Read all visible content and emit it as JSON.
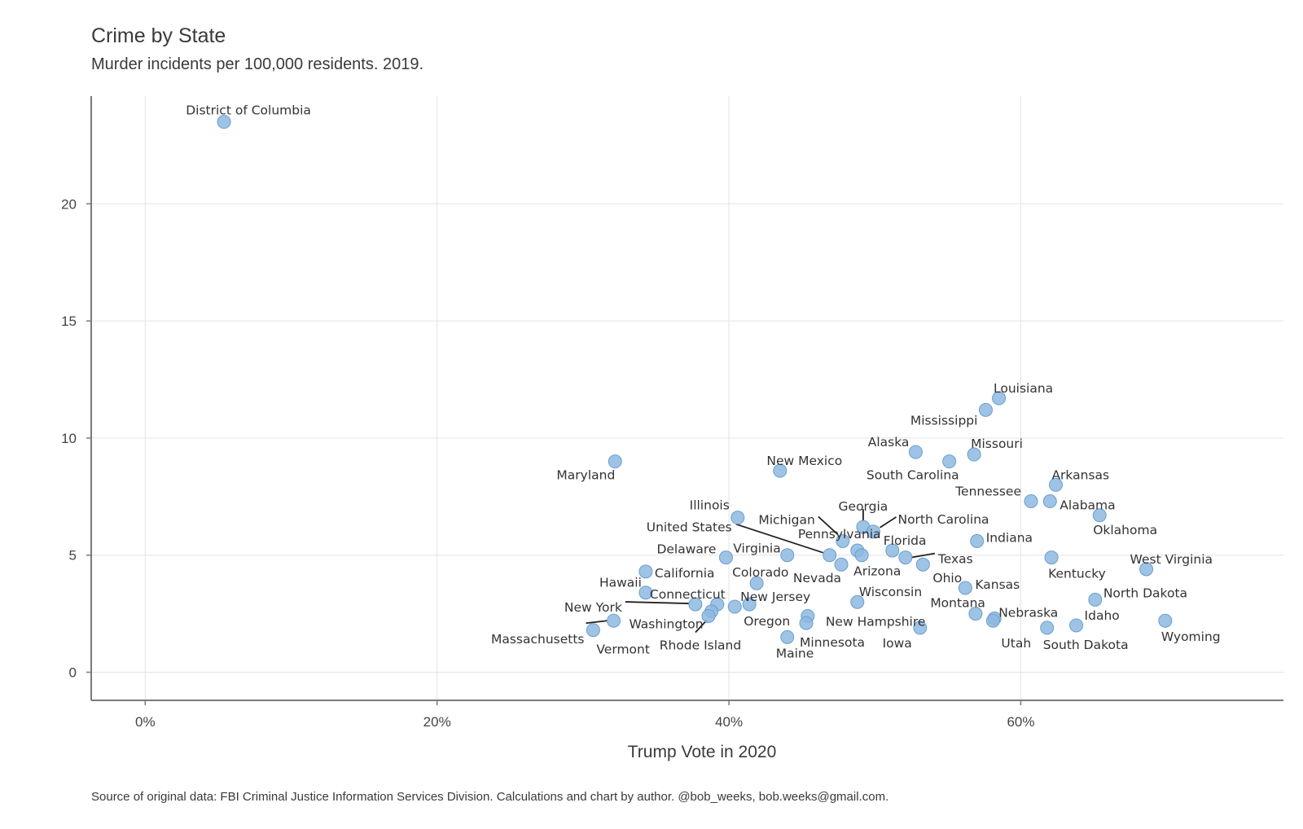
{
  "chart_data": {
    "type": "scatter",
    "title": "Crime by State",
    "subtitle": "Murder incidents per 100,000 residents. 2019.",
    "xlabel": "Trump Vote in 2020",
    "ylabel": "",
    "caption": "Source of original data: FBI Criminal Justice Information Services Division. Calculations and chart by author. @bob_weeks, bob.weeks@gmail.com.",
    "xlim": [
      -3.7,
      78
    ],
    "ylim": [
      -1.2,
      24.6
    ],
    "x_ticks": [
      {
        "v": 0,
        "label": "0%"
      },
      {
        "v": 20,
        "label": "20%"
      },
      {
        "v": 40,
        "label": "40%"
      },
      {
        "v": 60,
        "label": "60%"
      }
    ],
    "y_ticks": [
      {
        "v": 0,
        "label": "0"
      },
      {
        "v": 5,
        "label": "5"
      },
      {
        "v": 10,
        "label": "10"
      },
      {
        "v": 15,
        "label": "15"
      },
      {
        "v": 20,
        "label": "20"
      }
    ],
    "grid": true,
    "point_color": "#8db9e0",
    "point_stroke": "#6a9fd0",
    "points": [
      {
        "name": "District of Columbia",
        "x": 5.4,
        "y": 23.5
      },
      {
        "name": "Louisiana",
        "x": 58.5,
        "y": 11.7
      },
      {
        "name": "Mississippi",
        "x": 57.6,
        "y": 11.2
      },
      {
        "name": "Alaska",
        "x": 52.8,
        "y": 9.4
      },
      {
        "name": "Missouri",
        "x": 56.8,
        "y": 9.3
      },
      {
        "name": "South Carolina",
        "x": 55.1,
        "y": 9.0
      },
      {
        "name": "Maryland",
        "x": 32.2,
        "y": 9.0
      },
      {
        "name": "New Mexico",
        "x": 43.5,
        "y": 8.6
      },
      {
        "name": "Arkansas",
        "x": 62.4,
        "y": 8.0
      },
      {
        "name": "Tennessee",
        "x": 60.7,
        "y": 7.3
      },
      {
        "name": "Alabama",
        "x": 62.0,
        "y": 7.3
      },
      {
        "name": "Oklahoma",
        "x": 65.4,
        "y": 6.7
      },
      {
        "name": "Illinois",
        "x": 40.6,
        "y": 6.6
      },
      {
        "name": "Georgia",
        "x": 49.2,
        "y": 6.2
      },
      {
        "name": "North Carolina",
        "x": 49.9,
        "y": 6.0
      },
      {
        "name": "Michigan",
        "x": 47.8,
        "y": 5.6
      },
      {
        "name": "Indiana",
        "x": 57.0,
        "y": 5.6
      },
      {
        "name": "Pennsylvania",
        "x": 48.8,
        "y": 5.2
      },
      {
        "name": "Florida",
        "x": 51.2,
        "y": 5.2
      },
      {
        "name": "United States",
        "x": 46.9,
        "y": 5.0
      },
      {
        "name": "Arizona",
        "x": 49.1,
        "y": 5.0
      },
      {
        "name": "Virginia",
        "x": 44.0,
        "y": 5.0
      },
      {
        "name": "Texas",
        "x": 52.1,
        "y": 4.9
      },
      {
        "name": "Delaware",
        "x": 39.8,
        "y": 4.9
      },
      {
        "name": "Kentucky",
        "x": 62.1,
        "y": 4.9
      },
      {
        "name": "Nevada",
        "x": 47.7,
        "y": 4.6
      },
      {
        "name": "Ohio",
        "x": 53.3,
        "y": 4.6
      },
      {
        "name": "West Virginia",
        "x": 68.6,
        "y": 4.4
      },
      {
        "name": "California",
        "x": 34.3,
        "y": 4.3
      },
      {
        "name": "Colorado",
        "x": 41.9,
        "y": 3.8
      },
      {
        "name": "Kansas",
        "x": 56.2,
        "y": 3.6
      },
      {
        "name": "Hawaii",
        "x": 34.3,
        "y": 3.4
      },
      {
        "name": "North Dakota",
        "x": 65.1,
        "y": 3.1
      },
      {
        "name": "Wisconsin",
        "x": 48.8,
        "y": 3.0
      },
      {
        "name": "New Jersey",
        "x": 41.4,
        "y": 2.9
      },
      {
        "name": "New York",
        "x": 37.7,
        "y": 2.9
      },
      {
        "name": "Connecticut",
        "x": 39.2,
        "y": 2.9
      },
      {
        "name": "Oregon",
        "x": 40.4,
        "y": 2.8
      },
      {
        "name": "Washington",
        "x": 38.8,
        "y": 2.6
      },
      {
        "name": "Montana",
        "x": 56.9,
        "y": 2.5
      },
      {
        "name": "Rhode Island",
        "x": 38.6,
        "y": 2.4
      },
      {
        "name": "New Hampshire",
        "x": 45.4,
        "y": 2.4
      },
      {
        "name": "Nebraska",
        "x": 58.2,
        "y": 2.3
      },
      {
        "name": "Idaho",
        "x": 63.8,
        "y": 2.0
      },
      {
        "name": "Massachusetts",
        "x": 32.1,
        "y": 2.2
      },
      {
        "name": "Utah",
        "x": 58.1,
        "y": 2.2
      },
      {
        "name": "Wyoming",
        "x": 69.9,
        "y": 2.2
      },
      {
        "name": "Minnesota",
        "x": 45.3,
        "y": 2.1
      },
      {
        "name": "Iowa",
        "x": 53.1,
        "y": 1.9
      },
      {
        "name": "South Dakota",
        "x": 61.8,
        "y": 1.9
      },
      {
        "name": "Vermont",
        "x": 30.7,
        "y": 1.8
      },
      {
        "name": "Maine",
        "x": 44.0,
        "y": 1.5
      }
    ]
  }
}
